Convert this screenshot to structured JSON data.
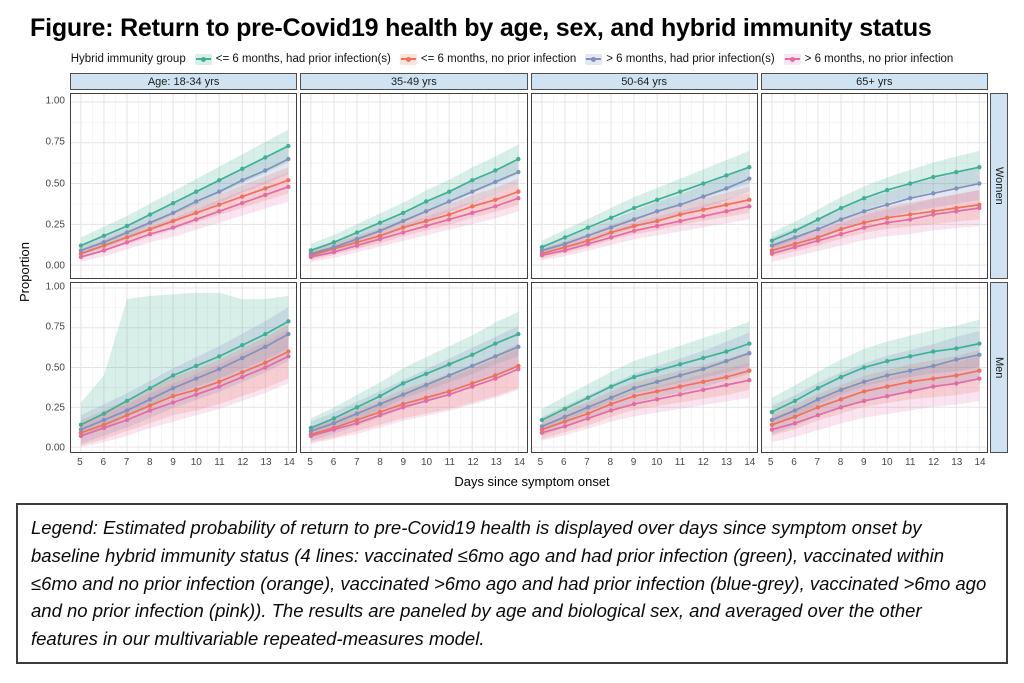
{
  "title": "Figure: Return to pre-Covid19 health by age, sex, and hybrid immunity status",
  "legend": {
    "title": "Hybrid immunity group",
    "items": [
      {
        "label": "<= 6 months, had prior infection(s)",
        "color": "#3eb193",
        "band": "rgba(62,177,147,0.20)"
      },
      {
        "label": "<= 6 months, no prior infection",
        "color": "#ee7158",
        "band": "rgba(238,113,88,0.20)"
      },
      {
        "label": "> 6 months, had prior infection(s)",
        "color": "#8191bd",
        "band": "rgba(129,145,189,0.22)"
      },
      {
        "label": "> 6 months, no prior infection",
        "color": "#e26ba4",
        "band": "rgba(226,107,164,0.18)"
      }
    ]
  },
  "axes": {
    "y_label": "Proportion",
    "x_label": "Days since symptom onset",
    "y_ticks": [
      "1.00",
      "0.75",
      "0.50",
      "0.25",
      "0.00"
    ],
    "x_ticks": [
      "5",
      "6",
      "7",
      "8",
      "9",
      "10",
      "11",
      "12",
      "13",
      "14"
    ]
  },
  "facets": {
    "columns": [
      "Age: 18-34 yrs",
      "35-49 yrs",
      "50-64 yrs",
      "65+ yrs"
    ],
    "rows": [
      "Women",
      "Men"
    ]
  },
  "colors": {
    "facet_strip_fill": "#cfe3f2",
    "panel_border": "#3f3f3f",
    "grid_major": "#e3e3e3",
    "grid_minor": "#f1f1f1"
  },
  "caption": "Legend: Estimated probability of return to pre-Covid19 health is displayed over days since symptom onset by baseline hybrid immunity status (4 lines: vaccinated ≤6mo ago and had prior infection (green), vaccinated within ≤6mo and no prior infection (orange), vaccinated >6mo ago and had prior infection (blue-grey), vaccinated >6mo ago and no prior infection (pink)). The results are paneled by age and biological sex, and averaged over the other features in our multivariable repeated-measures model.",
  "chart_data": {
    "type": "line",
    "x": [
      5,
      6,
      7,
      8,
      9,
      10,
      11,
      12,
      13,
      14
    ],
    "xlabel": "Days since symptom onset",
    "ylabel": "Proportion",
    "ylim": [
      0,
      1
    ],
    "grid": true,
    "legend_position": "top",
    "panels": [
      {
        "age": "Age: 18-34 yrs",
        "sex": "Women",
        "series": [
          {
            "name": "<= 6 months, had prior infection(s)",
            "values": [
              0.12,
              0.18,
              0.24,
              0.31,
              0.38,
              0.45,
              0.52,
              0.59,
              0.66,
              0.73
            ],
            "ci": [
              0.05,
              0.1
            ]
          },
          {
            "name": "<= 6 months, no prior infection",
            "values": [
              0.07,
              0.12,
              0.17,
              0.22,
              0.27,
              0.32,
              0.37,
              0.42,
              0.47,
              0.52
            ],
            "ci": [
              0.03,
              0.08
            ]
          },
          {
            "name": "> 6 months, had prior infection(s)",
            "values": [
              0.09,
              0.14,
              0.2,
              0.26,
              0.32,
              0.39,
              0.45,
              0.52,
              0.58,
              0.65
            ],
            "ci": [
              0.03,
              0.09
            ]
          },
          {
            "name": "> 6 months, no prior infection",
            "values": [
              0.05,
              0.09,
              0.14,
              0.19,
              0.23,
              0.28,
              0.33,
              0.38,
              0.43,
              0.48
            ],
            "ci": [
              0.03,
              0.09
            ]
          }
        ]
      },
      {
        "age": "35-49 yrs",
        "sex": "Women",
        "series": [
          {
            "name": "<= 6 months, had prior infection(s)",
            "values": [
              0.09,
              0.14,
              0.2,
              0.26,
              0.32,
              0.39,
              0.45,
              0.52,
              0.58,
              0.65
            ],
            "ci": [
              0.04,
              0.09
            ]
          },
          {
            "name": "<= 6 months, no prior infection",
            "values": [
              0.06,
              0.1,
              0.14,
              0.18,
              0.23,
              0.27,
              0.31,
              0.36,
              0.4,
              0.45
            ],
            "ci": [
              0.03,
              0.08
            ]
          },
          {
            "name": "> 6 months, had prior infection(s)",
            "values": [
              0.07,
              0.11,
              0.16,
              0.21,
              0.27,
              0.33,
              0.39,
              0.45,
              0.51,
              0.57
            ],
            "ci": [
              0.03,
              0.08
            ]
          },
          {
            "name": "> 6 months, no prior infection",
            "values": [
              0.05,
              0.08,
              0.12,
              0.16,
              0.2,
              0.24,
              0.28,
              0.32,
              0.36,
              0.41
            ],
            "ci": [
              0.03,
              0.08
            ]
          }
        ]
      },
      {
        "age": "50-64 yrs",
        "sex": "Women",
        "series": [
          {
            "name": "<= 6 months, had prior infection(s)",
            "values": [
              0.11,
              0.17,
              0.23,
              0.29,
              0.35,
              0.4,
              0.45,
              0.5,
              0.55,
              0.6
            ],
            "ci": [
              0.04,
              0.1
            ]
          },
          {
            "name": "<= 6 months, no prior infection",
            "values": [
              0.07,
              0.11,
              0.15,
              0.2,
              0.24,
              0.27,
              0.31,
              0.34,
              0.37,
              0.4
            ],
            "ci": [
              0.03,
              0.08
            ]
          },
          {
            "name": "> 6 months, had prior infection(s)",
            "values": [
              0.09,
              0.13,
              0.18,
              0.23,
              0.28,
              0.33,
              0.37,
              0.42,
              0.47,
              0.53
            ],
            "ci": [
              0.03,
              0.08
            ]
          },
          {
            "name": "> 6 months, no prior infection",
            "values": [
              0.06,
              0.09,
              0.13,
              0.17,
              0.21,
              0.24,
              0.27,
              0.3,
              0.33,
              0.36
            ],
            "ci": [
              0.03,
              0.08
            ]
          }
        ]
      },
      {
        "age": "65+ yrs",
        "sex": "Women",
        "series": [
          {
            "name": "<= 6 months, had prior infection(s)",
            "values": [
              0.15,
              0.21,
              0.28,
              0.35,
              0.41,
              0.46,
              0.5,
              0.54,
              0.57,
              0.6
            ],
            "ci": [
              0.05,
              0.1
            ]
          },
          {
            "name": "<= 6 months, no prior infection",
            "values": [
              0.09,
              0.13,
              0.17,
              0.22,
              0.26,
              0.29,
              0.31,
              0.33,
              0.35,
              0.37
            ],
            "ci": [
              0.04,
              0.09
            ]
          },
          {
            "name": "> 6 months, had prior infection(s)",
            "values": [
              0.12,
              0.17,
              0.22,
              0.28,
              0.33,
              0.37,
              0.41,
              0.44,
              0.47,
              0.5
            ],
            "ci": [
              0.05,
              0.1
            ]
          },
          {
            "name": "> 6 months, no prior infection",
            "values": [
              0.07,
              0.11,
              0.15,
              0.19,
              0.23,
              0.26,
              0.28,
              0.31,
              0.33,
              0.35
            ],
            "ci": [
              0.05,
              0.11
            ]
          }
        ]
      },
      {
        "age": "Age: 18-34 yrs",
        "sex": "Men",
        "series": [
          {
            "name": "<= 6 months, had prior infection(s)",
            "values": [
              0.14,
              0.21,
              0.29,
              0.37,
              0.45,
              0.51,
              0.57,
              0.64,
              0.71,
              0.79
            ],
            "ci": [
              0.08,
              0.17
            ],
            "hi": [
              0.28,
              0.45,
              0.93,
              0.95,
              0.96,
              0.97,
              0.97,
              0.93,
              0.93,
              0.95
            ]
          },
          {
            "name": "<= 6 months, no prior infection",
            "values": [
              0.09,
              0.14,
              0.2,
              0.26,
              0.32,
              0.36,
              0.41,
              0.47,
              0.53,
              0.6
            ],
            "ci": [
              0.08,
              0.17
            ]
          },
          {
            "name": "> 6 months, had prior infection(s)",
            "values": [
              0.11,
              0.17,
              0.23,
              0.3,
              0.37,
              0.43,
              0.49,
              0.56,
              0.63,
              0.71
            ],
            "ci": [
              0.09,
              0.17
            ]
          },
          {
            "name": "> 6 months, no prior infection",
            "values": [
              0.07,
              0.12,
              0.17,
              0.23,
              0.28,
              0.33,
              0.38,
              0.44,
              0.5,
              0.57
            ],
            "ci": [
              0.08,
              0.17
            ]
          }
        ]
      },
      {
        "age": "35-49 yrs",
        "sex": "Men",
        "series": [
          {
            "name": "<= 6 months, had prior infection(s)",
            "values": [
              0.12,
              0.18,
              0.25,
              0.32,
              0.4,
              0.46,
              0.52,
              0.58,
              0.65,
              0.71
            ],
            "ci": [
              0.06,
              0.14
            ]
          },
          {
            "name": "<= 6 months, no prior infection",
            "values": [
              0.08,
              0.12,
              0.17,
              0.22,
              0.27,
              0.31,
              0.35,
              0.4,
              0.45,
              0.51
            ],
            "ci": [
              0.05,
              0.14
            ]
          },
          {
            "name": "> 6 months, had prior infection(s)",
            "values": [
              0.1,
              0.15,
              0.21,
              0.27,
              0.33,
              0.39,
              0.45,
              0.51,
              0.57,
              0.63
            ],
            "ci": [
              0.06,
              0.13
            ]
          },
          {
            "name": "> 6 months, no prior infection",
            "values": [
              0.07,
              0.11,
              0.15,
              0.2,
              0.25,
              0.29,
              0.33,
              0.38,
              0.43,
              0.49
            ],
            "ci": [
              0.05,
              0.13
            ]
          }
        ]
      },
      {
        "age": "50-64 yrs",
        "sex": "Men",
        "series": [
          {
            "name": "<= 6 months, had prior infection(s)",
            "values": [
              0.17,
              0.24,
              0.31,
              0.38,
              0.44,
              0.48,
              0.52,
              0.56,
              0.6,
              0.65
            ],
            "ci": [
              0.07,
              0.14
            ]
          },
          {
            "name": "<= 6 months, no prior infection",
            "values": [
              0.11,
              0.16,
              0.21,
              0.27,
              0.32,
              0.35,
              0.38,
              0.41,
              0.44,
              0.48
            ],
            "ci": [
              0.06,
              0.12
            ]
          },
          {
            "name": "> 6 months, had prior infection(s)",
            "values": [
              0.13,
              0.19,
              0.25,
              0.31,
              0.37,
              0.41,
              0.45,
              0.49,
              0.54,
              0.59
            ],
            "ci": [
              0.06,
              0.13
            ]
          },
          {
            "name": "> 6 months, no prior infection",
            "values": [
              0.09,
              0.13,
              0.18,
              0.23,
              0.27,
              0.3,
              0.33,
              0.36,
              0.39,
              0.42
            ],
            "ci": [
              0.05,
              0.11
            ]
          }
        ]
      },
      {
        "age": "65+ yrs",
        "sex": "Men",
        "series": [
          {
            "name": "<= 6 months, had prior infection(s)",
            "values": [
              0.22,
              0.29,
              0.37,
              0.44,
              0.5,
              0.54,
              0.57,
              0.6,
              0.62,
              0.65
            ],
            "ci": [
              0.09,
              0.15
            ]
          },
          {
            "name": "<= 6 months, no prior infection",
            "values": [
              0.14,
              0.19,
              0.25,
              0.3,
              0.35,
              0.38,
              0.41,
              0.43,
              0.45,
              0.48
            ],
            "ci": [
              0.07,
              0.13
            ]
          },
          {
            "name": "> 6 months, had prior infection(s)",
            "values": [
              0.17,
              0.23,
              0.3,
              0.36,
              0.41,
              0.45,
              0.48,
              0.51,
              0.55,
              0.58
            ],
            "ci": [
              0.09,
              0.15
            ]
          },
          {
            "name": "> 6 months, no prior infection",
            "values": [
              0.11,
              0.15,
              0.2,
              0.25,
              0.29,
              0.32,
              0.35,
              0.38,
              0.4,
              0.43
            ],
            "ci": [
              0.08,
              0.14
            ]
          }
        ]
      }
    ]
  }
}
